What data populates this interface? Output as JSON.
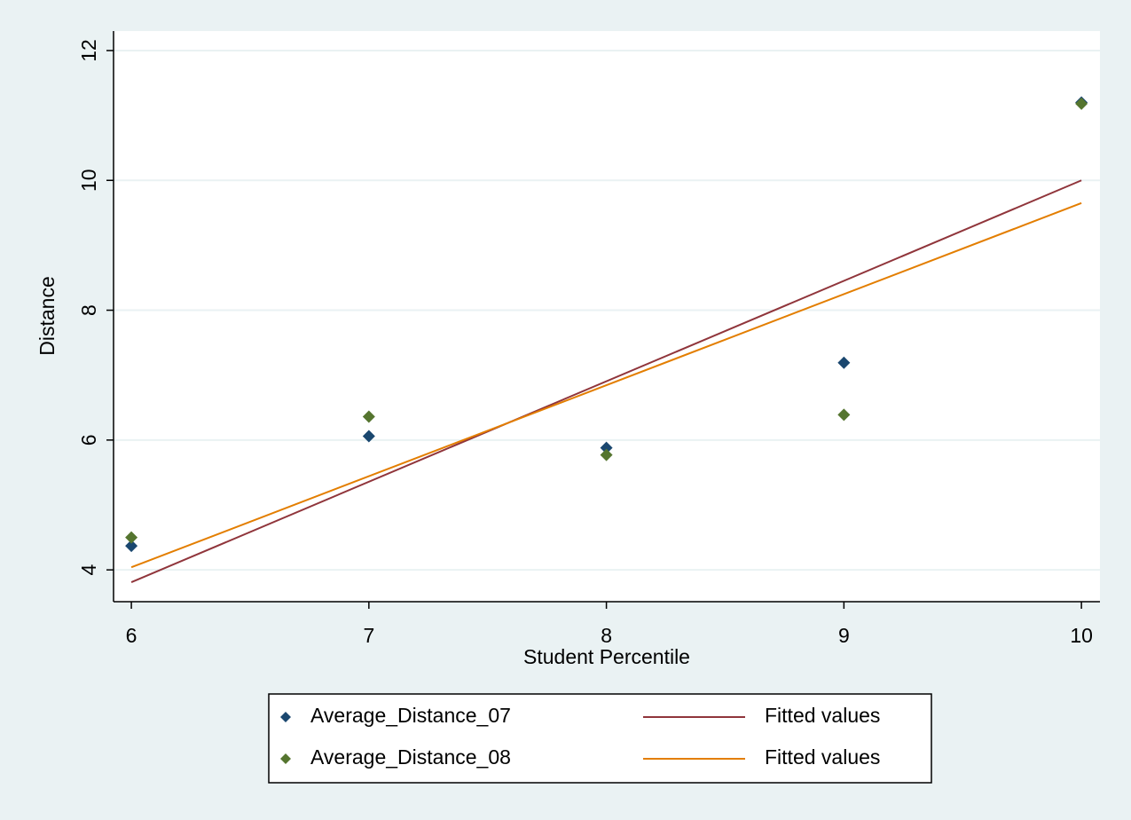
{
  "chart_data": {
    "type": "scatter",
    "x_label": "Student Percentile",
    "y_label": "Distance",
    "xlim": [
      5.925,
      10.078
    ],
    "ylim": [
      3.51,
      12.3
    ],
    "xticks": [
      6,
      7,
      8,
      9,
      10
    ],
    "yticks": [
      4,
      6,
      8,
      10,
      12
    ],
    "grid": true,
    "legend": "bottom",
    "series": [
      {
        "name": "Average_Distance_07",
        "type": "scatter",
        "color": "#1a476f",
        "x": [
          6,
          7,
          8,
          9,
          10
        ],
        "values": [
          4.37,
          6.06,
          5.88,
          7.19,
          11.2
        ]
      },
      {
        "name": "Average_Distance_08",
        "type": "scatter",
        "color": "#55752f",
        "x": [
          6,
          7,
          8,
          9,
          10
        ],
        "values": [
          4.5,
          6.36,
          5.77,
          6.39,
          11.18
        ]
      },
      {
        "name": "Fitted values",
        "type": "line",
        "color": "#90353b",
        "x": [
          6,
          10
        ],
        "values": [
          3.81,
          10.0
        ]
      },
      {
        "name": "Fitted values",
        "type": "line",
        "color": "#e37e00",
        "x": [
          6,
          10
        ],
        "values": [
          4.04,
          9.65
        ]
      }
    ]
  }
}
